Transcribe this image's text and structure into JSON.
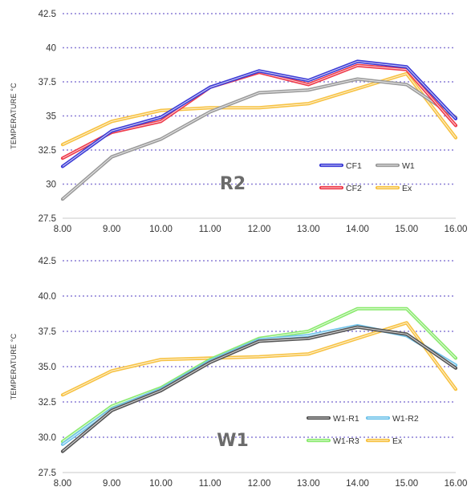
{
  "chart_data": [
    {
      "type": "line",
      "id": "r2",
      "title": "R2",
      "ylabel": "TEMPERATURE °C",
      "xlabel": "",
      "ylim": [
        27.5,
        42.5
      ],
      "yticks": [
        "27.5",
        "30",
        "32.5",
        "35",
        "37.5",
        "40",
        "42.5"
      ],
      "x": [
        8,
        9,
        10,
        11,
        12,
        13,
        14,
        15,
        16
      ],
      "xticks": [
        "8.00",
        "9.00",
        "10.00",
        "11.00",
        "12.00",
        "13.00",
        "14.00",
        "15.00",
        "16.00"
      ],
      "grid": "horizontal dotted",
      "legend_position": "bottom-right",
      "series": [
        {
          "name": "CF1",
          "color": "#3b3bd6",
          "values": [
            31.3,
            33.9,
            34.9,
            37.1,
            38.3,
            37.6,
            39.0,
            38.6,
            34.8
          ]
        },
        {
          "name": "CF2",
          "color": "#ee3a4a",
          "values": [
            31.9,
            33.8,
            34.6,
            37.1,
            38.2,
            37.3,
            38.7,
            38.4,
            34.3
          ]
        },
        {
          "name": "W1",
          "color": "#9a9a9a",
          "values": [
            28.9,
            32.0,
            33.3,
            35.3,
            36.7,
            36.9,
            37.7,
            37.3,
            34.9
          ]
        },
        {
          "name": "Ex",
          "color": "#f7c242",
          "values": [
            32.9,
            34.6,
            35.4,
            35.6,
            35.6,
            35.9,
            37.0,
            38.1,
            33.4
          ]
        }
      ],
      "legend_order": [
        "CF1",
        "W1",
        "CF2",
        "Ex"
      ]
    },
    {
      "type": "line",
      "id": "w1",
      "title": "W1",
      "ylabel": "TEMPERATURE °C",
      "xlabel": "",
      "ylim": [
        27.5,
        42.5
      ],
      "yticks": [
        "27.5",
        "30.0",
        "32.5",
        "35.0",
        "37.5",
        "40.0",
        "42.5"
      ],
      "x": [
        8,
        9,
        10,
        11,
        12,
        13,
        14,
        15,
        16
      ],
      "xticks": [
        "8.00",
        "9.00",
        "10.00",
        "11.00",
        "12.00",
        "13.00",
        "14.00",
        "15.00",
        "16.00"
      ],
      "grid": "horizontal dotted",
      "legend_position": "bottom-right",
      "series": [
        {
          "name": "W1-R1",
          "color": "#555555",
          "values": [
            29.0,
            31.9,
            33.3,
            35.3,
            36.8,
            37.0,
            37.8,
            37.3,
            34.9
          ]
        },
        {
          "name": "W1-R2",
          "color": "#6fc3ea",
          "values": [
            29.5,
            32.0,
            33.4,
            35.4,
            36.9,
            37.2,
            37.9,
            37.2,
            35.1
          ]
        },
        {
          "name": "W1-R3",
          "color": "#8aea6e",
          "values": [
            29.7,
            32.2,
            33.5,
            35.5,
            37.0,
            37.5,
            39.1,
            39.1,
            35.6
          ]
        },
        {
          "name": "Ex",
          "color": "#f7c242",
          "values": [
            33.0,
            34.7,
            35.5,
            35.6,
            35.7,
            35.9,
            37.0,
            38.1,
            33.4
          ]
        }
      ],
      "legend_order": [
        "W1-R1",
        "W1-R2",
        "W1-R3",
        "Ex"
      ]
    }
  ]
}
